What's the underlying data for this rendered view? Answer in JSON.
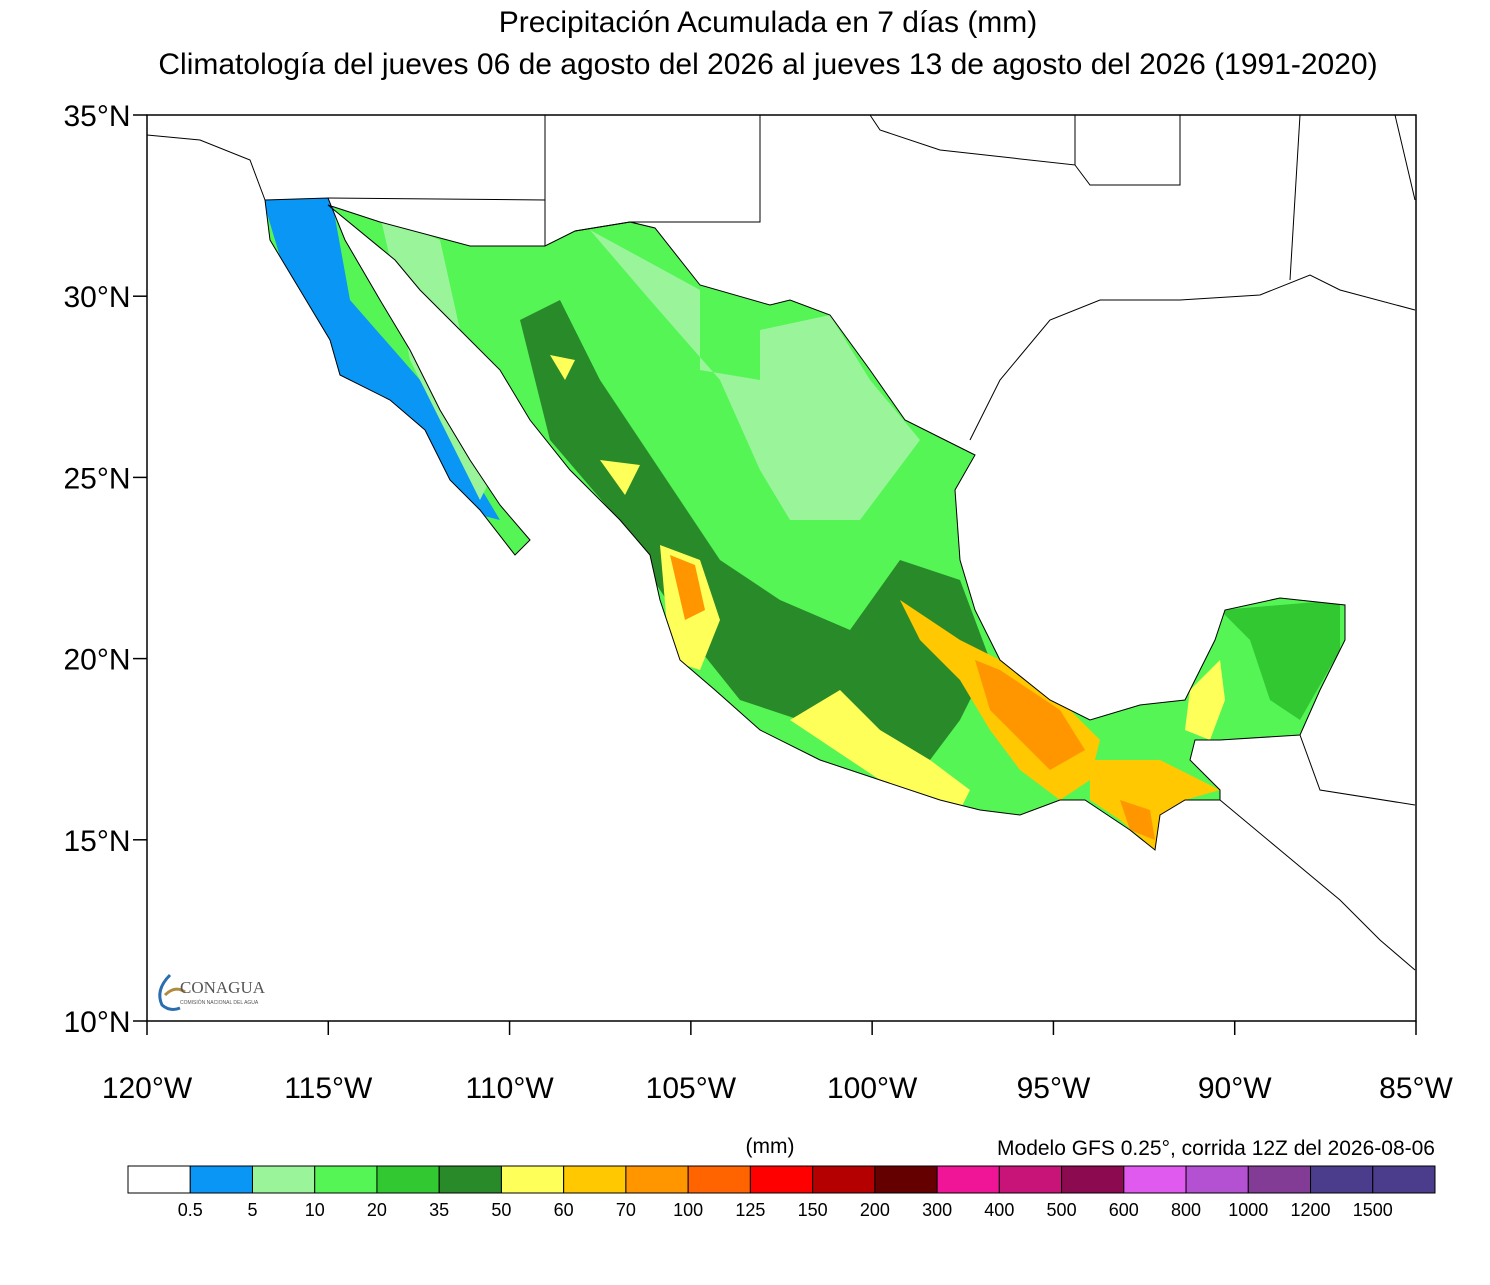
{
  "title": "Precipitación Acumulada en 7 días (mm)",
  "subtitle": "Climatología del jueves 06 de agosto del 2026 al jueves  13 de agosto del 2026 (1991-2020)",
  "map": {
    "lat_range": [
      10,
      35
    ],
    "lon_range": [
      -120,
      -85
    ],
    "lat_ticks": [
      {
        "value": 35,
        "label": "35°N"
      },
      {
        "value": 30,
        "label": "30°N"
      },
      {
        "value": 25,
        "label": "25°N"
      },
      {
        "value": 20,
        "label": "20°N"
      },
      {
        "value": 15,
        "label": "15°N"
      },
      {
        "value": 10,
        "label": "10°N"
      }
    ],
    "lon_ticks": [
      {
        "value": -120,
        "label": "120°W"
      },
      {
        "value": -115,
        "label": "115°W"
      },
      {
        "value": -110,
        "label": "110°W"
      },
      {
        "value": -105,
        "label": "105°W"
      },
      {
        "value": -100,
        "label": "100°W"
      },
      {
        "value": -95,
        "label": "95°W"
      },
      {
        "value": -90,
        "label": "90°W"
      },
      {
        "value": -85,
        "label": "85°W"
      }
    ]
  },
  "logo": {
    "name": "CONAGUA",
    "subtitle": "COMISIÓN NACIONAL DEL AGUA"
  },
  "note": "Modelo GFS 0.25°, corrida 12Z del 2026-08-06",
  "colorbar": {
    "unit": "(mm)",
    "colors": [
      "#ffffff",
      "#0a96f5",
      "#9af59a",
      "#55f555",
      "#32c832",
      "#288a28",
      "#ffff5a",
      "#ffc800",
      "#ff9600",
      "#ff6400",
      "#ff0000",
      "#b40000",
      "#640000",
      "#f01496",
      "#c81478",
      "#8c0a50",
      "#e05af0",
      "#b450d2",
      "#823c96",
      "#4b3c8c",
      "#4b3c8c"
    ],
    "labels": [
      0.5,
      5,
      10,
      20,
      35,
      50,
      60,
      70,
      100,
      125,
      150,
      200,
      300,
      400,
      500,
      600,
      800,
      1000,
      1200,
      1500
    ]
  }
}
